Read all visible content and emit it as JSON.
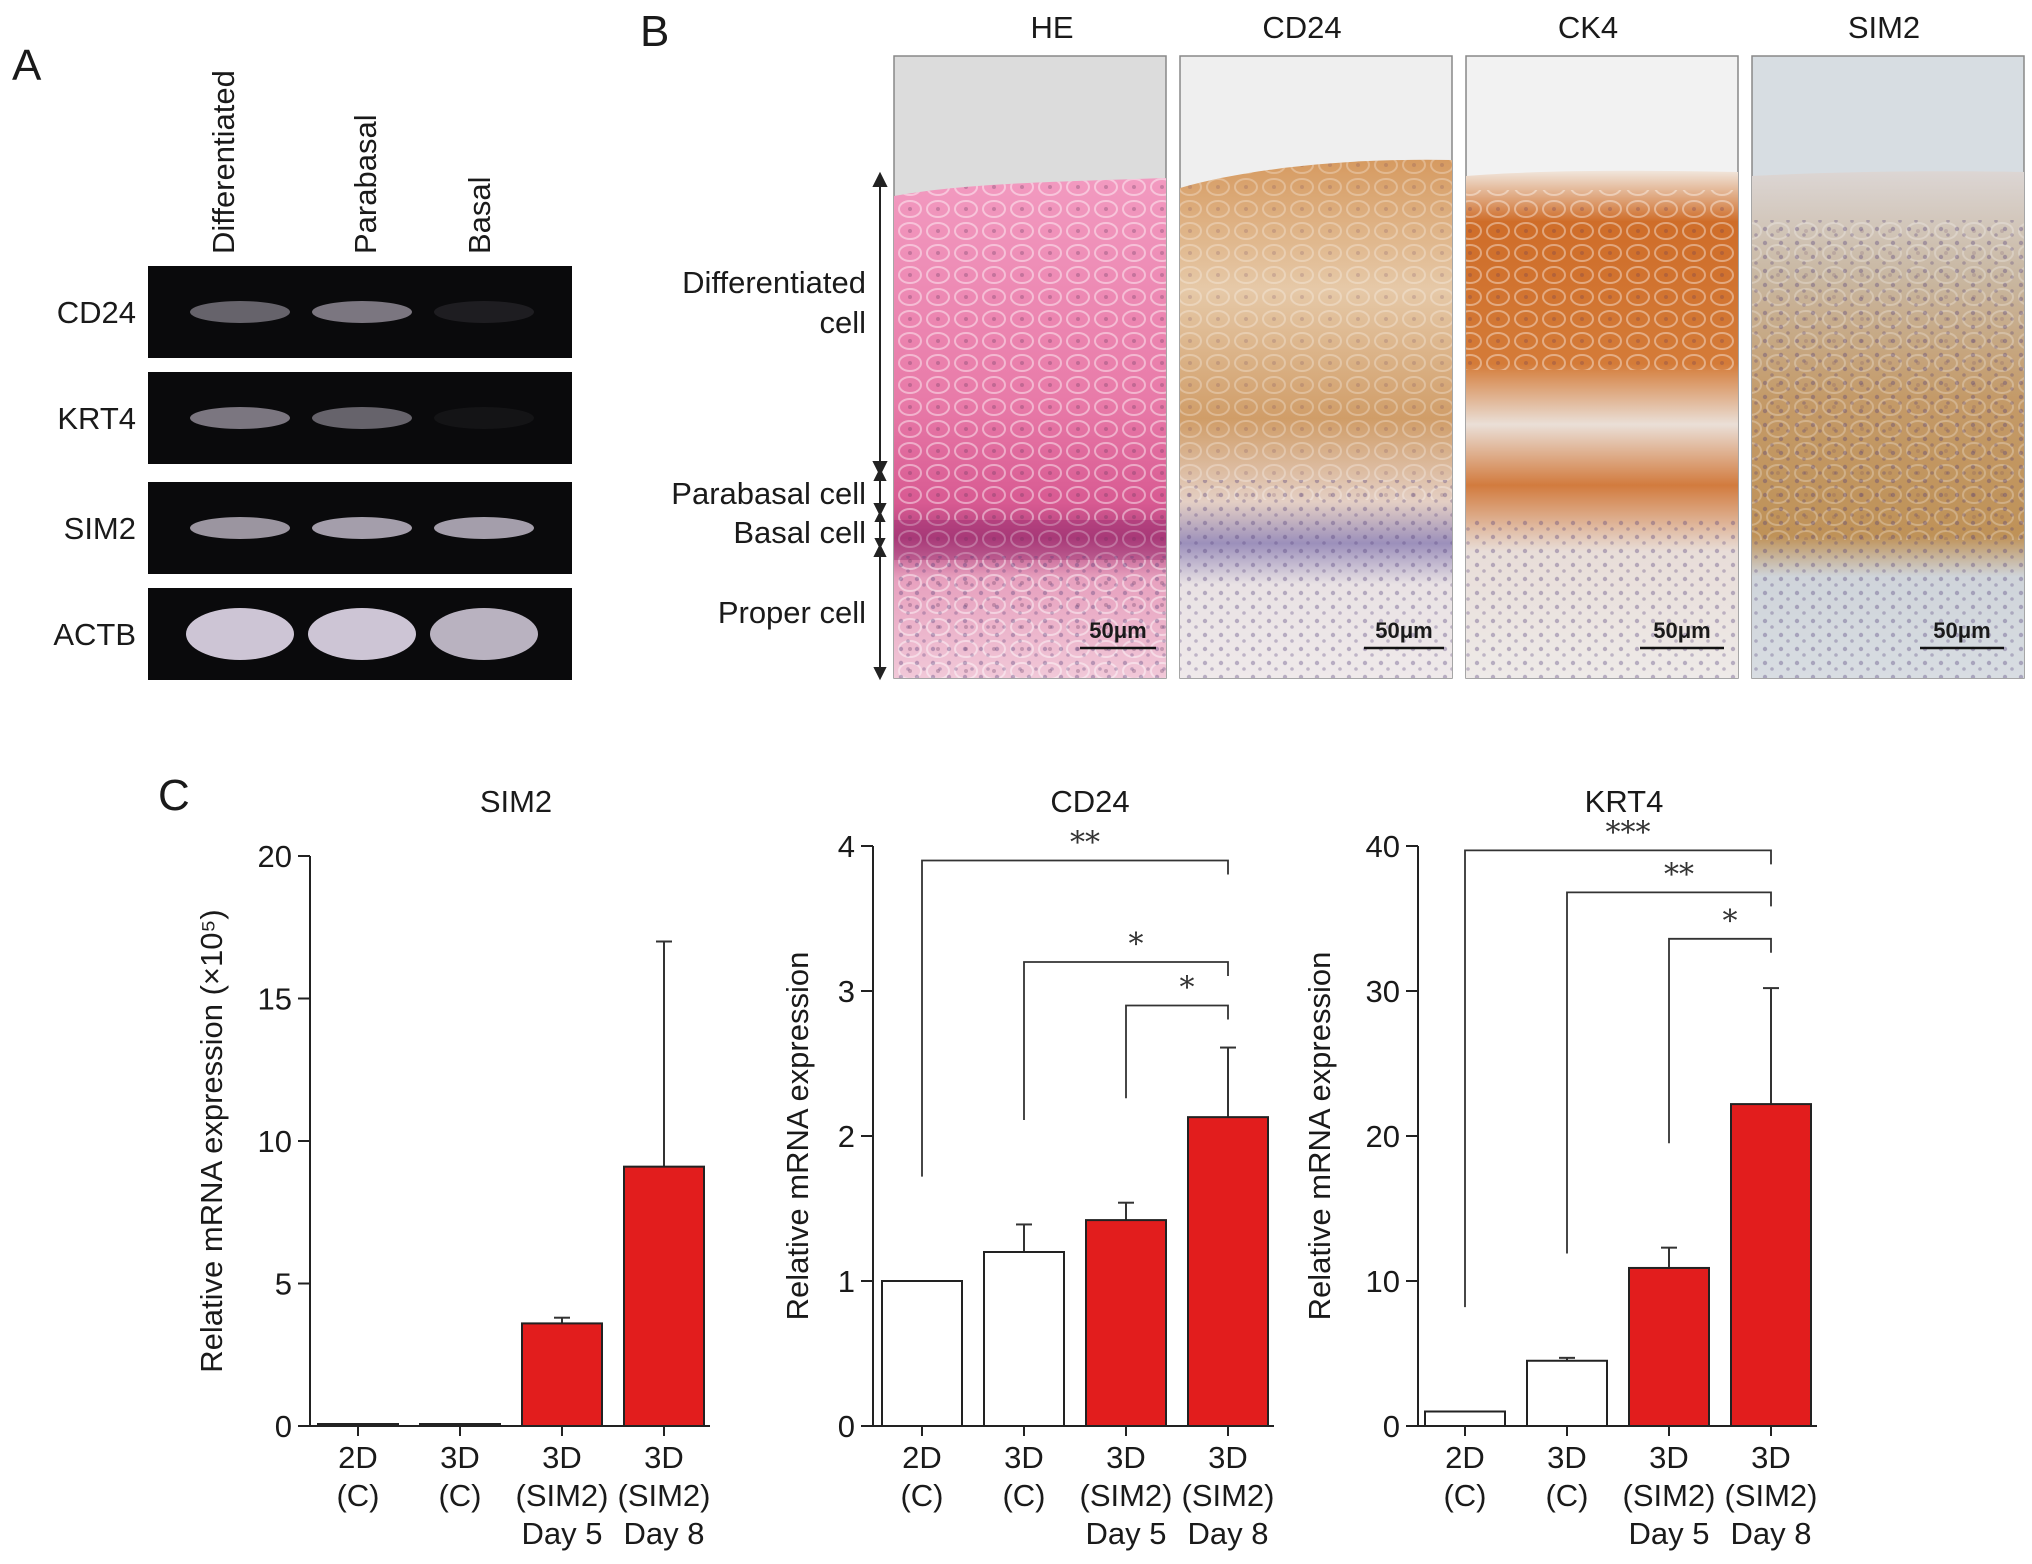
{
  "panel_letters": {
    "a": "A",
    "b": "B",
    "c": "C"
  },
  "panel_a": {
    "lanes": [
      "Differentiated",
      "Parabasal",
      "Basal"
    ],
    "rows": [
      {
        "label": "CD24",
        "band_intensity": [
          0.45,
          0.55,
          0.1
        ]
      },
      {
        "label": "KRT4",
        "band_intensity": [
          0.55,
          0.45,
          0.05
        ]
      },
      {
        "label": "SIM2",
        "band_intensity": [
          0.7,
          0.75,
          0.75
        ]
      },
      {
        "label": "ACTB",
        "band_intensity": [
          0.95,
          0.95,
          0.85
        ]
      }
    ],
    "band_color": "#d8d0e0"
  },
  "panel_b": {
    "stain_titles": [
      "HE",
      "CD24",
      "CK4",
      "SIM2"
    ],
    "layer_labels": {
      "differentiated": [
        "Differentiated",
        "cell"
      ],
      "parabasal": "Parabasal cell",
      "basal": "Basal cell",
      "proper": "Proper cell"
    },
    "scale_bar_label": "50μm",
    "stain_colors": {
      "HE": "#e46e9e",
      "CD24": "#c98c4e",
      "CK4": "#c8621f",
      "SIM2": "#b98a5a",
      "hematoxylin": "#8a7fae"
    }
  },
  "chart_data": [
    {
      "type": "bar",
      "title": "SIM2",
      "ylabel": "Relative mRNA expression (×10⁵)",
      "ylim": [
        0,
        20
      ],
      "yticks": [
        0,
        5,
        10,
        15,
        20
      ],
      "categories": [
        [
          "2D",
          "(C)"
        ],
        [
          "3D",
          "(C)"
        ],
        [
          "3D",
          "(SIM2)",
          "Day 5"
        ],
        [
          "3D",
          "(SIM2)",
          "Day 8"
        ]
      ],
      "values": [
        0.05,
        0.05,
        3.6,
        9.1
      ],
      "errors": [
        0,
        0,
        0.2,
        7.9
      ],
      "bar_colors": [
        "#ffffff",
        "#ffffff",
        "#e21d1d",
        "#e21d1d"
      ],
      "significance": []
    },
    {
      "type": "bar",
      "title": "CD24",
      "ylabel": "Relative mRNA expression",
      "ylim": [
        0,
        4
      ],
      "yticks": [
        0,
        1,
        2,
        3,
        4
      ],
      "categories": [
        [
          "2D",
          "(C)"
        ],
        [
          "3D",
          "(C)"
        ],
        [
          "3D",
          "(SIM2)",
          "Day 5"
        ],
        [
          "3D",
          "(SIM2)",
          "Day 8"
        ]
      ],
      "values": [
        1.0,
        1.2,
        1.42,
        2.13
      ],
      "errors": [
        0,
        0.19,
        0.12,
        0.48
      ],
      "bar_colors": [
        "#ffffff",
        "#ffffff",
        "#e21d1d",
        "#e21d1d"
      ],
      "significance": [
        {
          "from": 0,
          "to": 3,
          "label": "**",
          "level": 3.9,
          "drop_to": 2.43
        },
        {
          "from": 1,
          "to": 3,
          "label": "*",
          "level": 3.2,
          "drop_to": 2.43
        },
        {
          "from": 2,
          "to": 3,
          "label": "*",
          "level": 2.9,
          "drop_to": 2.43
        }
      ]
    },
    {
      "type": "bar",
      "title": "KRT4",
      "ylabel": "Relative mRNA expression",
      "ylim": [
        0,
        40
      ],
      "yticks": [
        0,
        10,
        20,
        30,
        40
      ],
      "categories": [
        [
          "2D",
          "(C)"
        ],
        [
          "3D",
          "(C)"
        ],
        [
          "3D",
          "(SIM2)",
          "Day 5"
        ],
        [
          "3D",
          "(SIM2)",
          "Day 8"
        ]
      ],
      "values": [
        1.0,
        4.5,
        10.9,
        22.2
      ],
      "errors": [
        0,
        0.2,
        1.4,
        8.0
      ],
      "bar_colors": [
        "#ffffff",
        "#ffffff",
        "#e21d1d",
        "#e21d1d"
      ],
      "significance": [
        {
          "from": 0,
          "to": 3,
          "label": "***",
          "level": 39.7,
          "drop_to": 25.3
        },
        {
          "from": 1,
          "to": 3,
          "label": "**",
          "level": 36.8,
          "drop_to": 25.3
        },
        {
          "from": 2,
          "to": 3,
          "label": "*",
          "level": 33.6,
          "drop_to": 25.3
        }
      ]
    }
  ]
}
